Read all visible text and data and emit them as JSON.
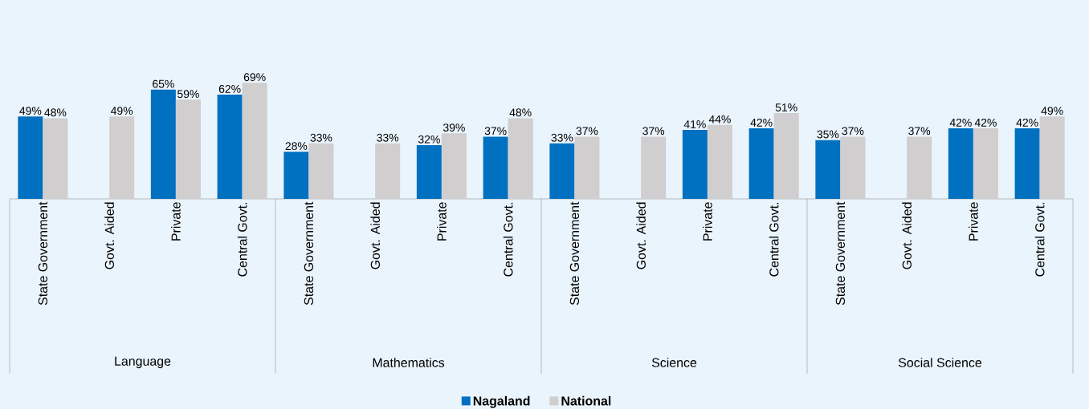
{
  "chart_data": {
    "type": "bar",
    "categories": [
      "State Government",
      "Govt. Aided",
      "Private",
      "Central Govt.",
      "State Government",
      "Govt. Aided",
      "Private",
      "Central Govt.",
      "State Government",
      "Govt. Aided",
      "Private",
      "Central Govt.",
      "State Government",
      "Govt. Aided",
      "Private",
      "Central Govt."
    ],
    "annotations": [
      "Language",
      "Mathematics",
      "Science",
      "Social Science"
    ],
    "series": [
      {
        "name": "Nagaland",
        "color": "#0070c0",
        "values": [
          49,
          null,
          65,
          62,
          28,
          null,
          32,
          37,
          33,
          null,
          41,
          42,
          35,
          null,
          42,
          42
        ],
        "value_labels": [
          "49%",
          null,
          "65%",
          "62%",
          "28%",
          null,
          "32%",
          "37%",
          "33%",
          null,
          "41%",
          "42%",
          "35%",
          null,
          "42%",
          "42%"
        ]
      },
      {
        "name": "National",
        "color": "#d0cece",
        "values": [
          48,
          49,
          59,
          69,
          33,
          33,
          39,
          48,
          37,
          37,
          44,
          51,
          37,
          37,
          42,
          49
        ],
        "value_labels": [
          "48%",
          "49%",
          "59%",
          "69%",
          "33%",
          "33%",
          "39%",
          "48%",
          "37%",
          "37%",
          "44%",
          "51%",
          "37%",
          "37%",
          "42%",
          "49%"
        ]
      }
    ],
    "legend": "bottom"
  }
}
